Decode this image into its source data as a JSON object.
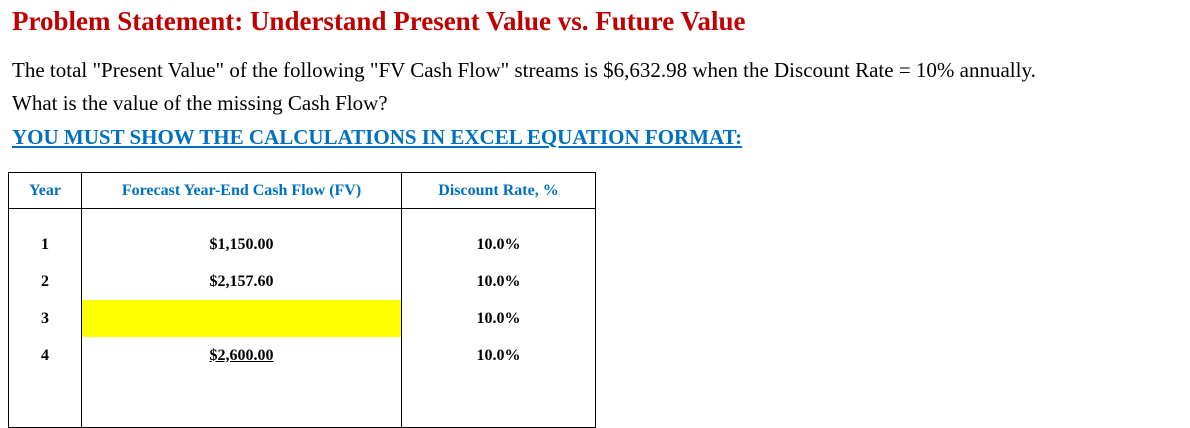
{
  "title": "Problem Statement: Understand Present Value vs. Future Value",
  "paragraph": {
    "line1": "The total \"Present Value\" of the following \"FV Cash Flow\" streams is $6,632.98 when the Discount Rate = 10% annually.",
    "line2": "What is the value of the missing Cash Flow?"
  },
  "instruction": "YOU MUST SHOW THE CALCULATIONS IN EXCEL EQUATION FORMAT:",
  "table": {
    "headers": {
      "year": "Year",
      "fv": "Forecast Year-End Cash Flow (FV)",
      "rate": "Discount Rate, %"
    },
    "rows": [
      {
        "year": "1",
        "fv": "$1,150.00",
        "rate": "10.0%"
      },
      {
        "year": "2",
        "fv": "$2,157.60",
        "rate": "10.0%"
      },
      {
        "year": "3",
        "fv": "",
        "rate": "10.0%"
      },
      {
        "year": "4",
        "fv": "$2,600.00",
        "rate": "10.0%"
      }
    ]
  },
  "colors": {
    "title": "#c00000",
    "accent_blue": "#0070c0",
    "highlight": "#ffff00"
  }
}
